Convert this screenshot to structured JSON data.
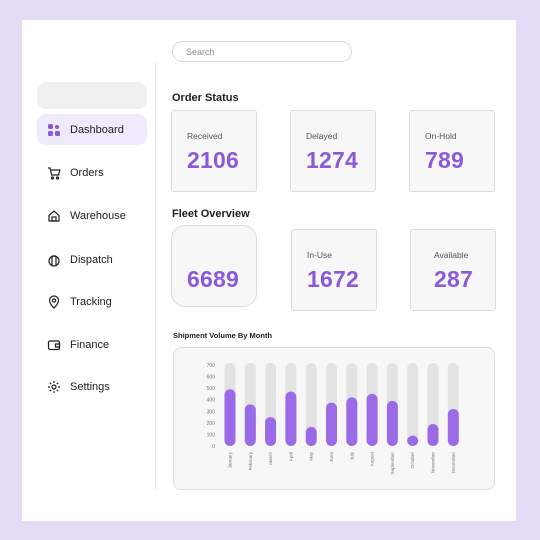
{
  "search": {
    "placeholder": "Search"
  },
  "sidebar": {
    "items": [
      {
        "label": "Dashboard",
        "icon": "dashboard-icon",
        "active": true
      },
      {
        "label": "Orders",
        "icon": "cart-icon",
        "active": false
      },
      {
        "label": "Warehouse",
        "icon": "warehouse-icon",
        "active": false
      },
      {
        "label": "Dispatch",
        "icon": "dispatch-icon",
        "active": false
      },
      {
        "label": "Tracking",
        "icon": "location-pin-icon",
        "active": false
      },
      {
        "label": "Finance",
        "icon": "wallet-icon",
        "active": false
      },
      {
        "label": "Settings",
        "icon": "gear-icon",
        "active": false
      }
    ]
  },
  "order_status": {
    "title": "Order Status",
    "cards": [
      {
        "label": "Received",
        "value": "2106"
      },
      {
        "label": "Delayed",
        "value": "1274"
      },
      {
        "label": "On-Hold",
        "value": "789"
      }
    ]
  },
  "fleet_overview": {
    "title": "Fleet Overview",
    "cards": [
      {
        "label": "",
        "value": "6689"
      },
      {
        "label": "In-Use",
        "value": "1672"
      },
      {
        "label": "Available",
        "value": "287"
      }
    ]
  },
  "colors": {
    "accent": "#8a5ad8",
    "bar": "#9b6ae6",
    "bar_track": "#e3e3e3",
    "active_nav": "#efeafc",
    "background": "#e4dcf7"
  },
  "chart_data": {
    "type": "bar",
    "title": "Shipment Volume By Month",
    "categories": [
      "January",
      "February",
      "March",
      "April",
      "May",
      "June",
      "July",
      "August",
      "September",
      "October",
      "November",
      "December"
    ],
    "values": [
      490,
      360,
      250,
      470,
      165,
      375,
      420,
      450,
      390,
      90,
      190,
      320
    ],
    "ylim": [
      0,
      700
    ],
    "yticks": [
      0,
      100,
      200,
      300,
      400,
      500,
      600,
      700
    ],
    "grid": false,
    "xlabel": "",
    "ylabel": ""
  }
}
